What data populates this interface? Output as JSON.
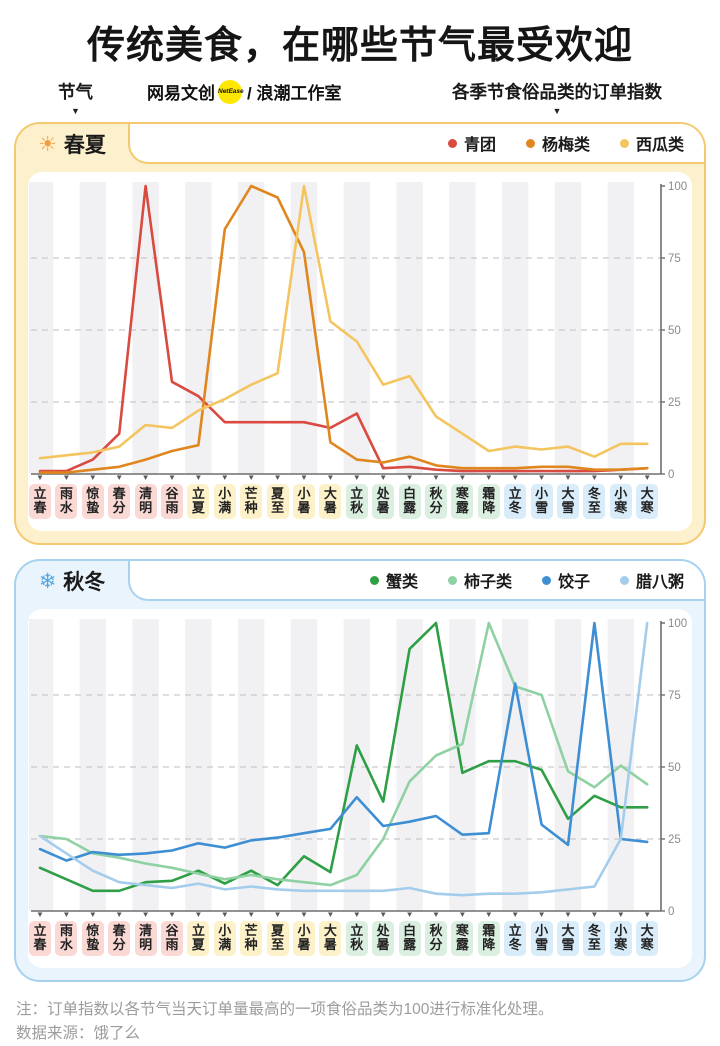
{
  "page": {
    "title": "传统美食，在哪些节气最受欢迎"
  },
  "header": {
    "left_label": "节气",
    "logo": {
      "brand": "网易文创",
      "badge": "NetEase",
      "suffix": "/ 浪潮工作室"
    },
    "right_label": "各季节食俗品类的订单指数",
    "arrow": "▼"
  },
  "term_seasons": [
    "spring",
    "spring",
    "spring",
    "spring",
    "spring",
    "spring",
    "summer",
    "summer",
    "summer",
    "summer",
    "summer",
    "summer",
    "autumn",
    "autumn",
    "autumn",
    "autumn",
    "autumn",
    "autumn",
    "winter",
    "winter",
    "winter",
    "winter",
    "winter",
    "winter"
  ],
  "season_colors": {
    "spring": "#fad9d4",
    "summer": "#fcf1c9",
    "autumn": "#dbefe0",
    "winter": "#d8ecfa"
  },
  "chart_data": [
    {
      "type": "line",
      "title": "春夏",
      "icon": "sun",
      "icon_glyph": "☀",
      "icon_color": "#f59d3d",
      "panel_border": "#f4c96f",
      "panel_bg": "#fdf1cd",
      "legend_position": "top-right",
      "ylim": [
        0,
        100
      ],
      "yticks": [
        0,
        25,
        50,
        75,
        100
      ],
      "grid": "dashed-horizontal",
      "categories": [
        "立春",
        "雨水",
        "惊蛰",
        "春分",
        "清明",
        "谷雨",
        "立夏",
        "小满",
        "芒种",
        "夏至",
        "小暑",
        "大暑",
        "立秋",
        "处暑",
        "白露",
        "秋分",
        "寒露",
        "霜降",
        "立冬",
        "小雪",
        "大雪",
        "冬至",
        "小寒",
        "大寒"
      ],
      "series": [
        {
          "name": "青团",
          "color": "#d94a41",
          "values": [
            1,
            1,
            5,
            14,
            100,
            32,
            27,
            18,
            18,
            18,
            18,
            16,
            21,
            2,
            2.5,
            1.5,
            1,
            1,
            1,
            1,
            1,
            1,
            1.5,
            2
          ]
        },
        {
          "name": "杨梅类",
          "color": "#e0861f",
          "values": [
            0.5,
            0.5,
            1.5,
            2.5,
            5,
            8,
            10,
            85,
            100,
            96,
            77,
            11,
            5,
            4,
            6,
            3,
            2,
            2,
            2,
            2.5,
            2.5,
            1.5,
            1.5,
            2
          ]
        },
        {
          "name": "西瓜类",
          "color": "#f4c55f",
          "values": [
            5.5,
            6.5,
            7.5,
            9.5,
            17,
            16,
            22,
            26,
            31,
            35,
            100,
            53,
            46,
            31,
            34,
            20,
            14,
            8,
            9.5,
            8.5,
            9.5,
            6,
            10.5,
            10.5
          ]
        }
      ]
    },
    {
      "type": "line",
      "title": "秋冬",
      "icon": "snowflake",
      "icon_glyph": "❄",
      "icon_color": "#53a6e4",
      "panel_border": "#a6d2f0",
      "panel_bg": "#e9f4fc",
      "legend_position": "top-right",
      "ylim": [
        0,
        100
      ],
      "yticks": [
        0,
        25,
        50,
        75,
        100
      ],
      "grid": "dashed-horizontal",
      "categories": [
        "立春",
        "雨水",
        "惊蛰",
        "春分",
        "清明",
        "谷雨",
        "立夏",
        "小满",
        "芒种",
        "夏至",
        "小暑",
        "大暑",
        "立秋",
        "处暑",
        "白露",
        "秋分",
        "寒露",
        "霜降",
        "立冬",
        "小雪",
        "大雪",
        "冬至",
        "小寒",
        "大寒"
      ],
      "series": [
        {
          "name": "蟹类",
          "color": "#2e9f45",
          "values": [
            15,
            11,
            7,
            7,
            10,
            10.5,
            14,
            9.5,
            14,
            9,
            19,
            13.5,
            57.5,
            38,
            91,
            100,
            48,
            52,
            52,
            49,
            32,
            40,
            36,
            36
          ]
        },
        {
          "name": "柿子类",
          "color": "#8fd1a2",
          "values": [
            26,
            25,
            20,
            18.5,
            16.5,
            15,
            13,
            11,
            12.5,
            11,
            10,
            9,
            12.5,
            25,
            45,
            54,
            58,
            100,
            78,
            75,
            48.5,
            43,
            50.5,
            44
          ]
        },
        {
          "name": "饺子",
          "color": "#3d8ed2",
          "values": [
            21.5,
            17.5,
            20.5,
            19.5,
            20,
            21,
            23.5,
            22,
            24.5,
            25.5,
            27,
            28.5,
            39.5,
            29.5,
            31,
            33,
            26.5,
            27,
            79,
            30,
            23,
            100,
            25,
            24
          ]
        },
        {
          "name": "腊八粥",
          "color": "#a4cdec",
          "values": [
            26,
            20,
            14,
            10,
            9,
            8,
            9.5,
            7.5,
            8.5,
            7.5,
            7,
            7,
            7,
            7,
            8,
            6,
            5.5,
            6,
            6,
            6.5,
            7.5,
            8.5,
            25,
            100
          ]
        }
      ]
    }
  ],
  "footer": {
    "note": "注：订单指数以各节气当天订单量最高的一项食俗品类为100进行标准化处理。",
    "source": "数据来源：饿了么"
  }
}
